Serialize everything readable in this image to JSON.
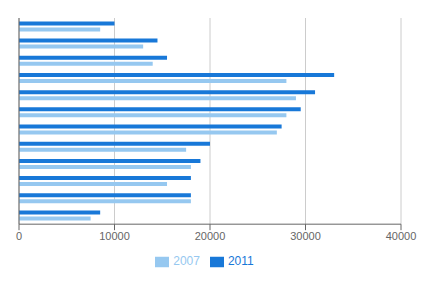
{
  "chart_data": {
    "type": "bar",
    "orientation": "horizontal",
    "categories": [
      null,
      null,
      null,
      null,
      null,
      null,
      null,
      null,
      null,
      null,
      null,
      null
    ],
    "series": [
      {
        "name": "2011",
        "color": "#1878d8",
        "values": [
          10000,
          14500,
          15500,
          33000,
          31000,
          29500,
          27500,
          20000,
          19000,
          18000,
          18000,
          8500
        ]
      },
      {
        "name": "2007",
        "color": "#96c8f0",
        "values": [
          8500,
          13000,
          14000,
          28000,
          29000,
          28000,
          27000,
          17500,
          18000,
          15500,
          18000,
          7500
        ]
      }
    ],
    "xlim": [
      0,
      40000
    ],
    "xticks": [
      0,
      10000,
      20000,
      30000,
      40000
    ],
    "grid": true,
    "legend": "bottom",
    "tick_labels": "x"
  }
}
